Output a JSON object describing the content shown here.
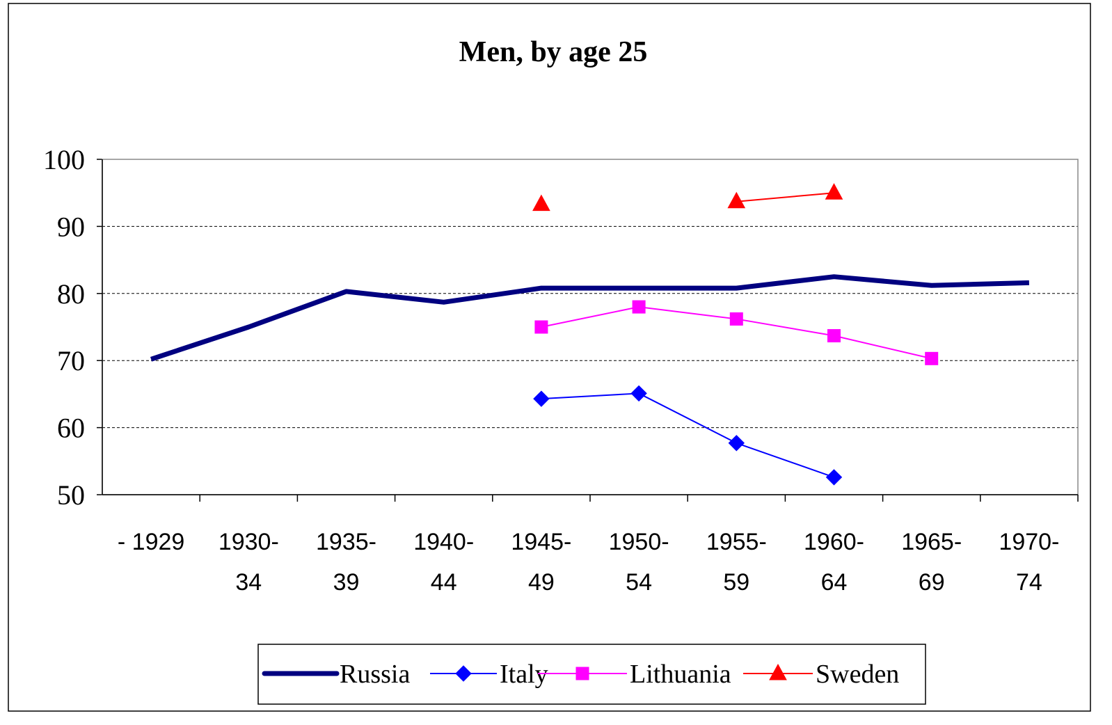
{
  "chart_data": {
    "type": "line",
    "title": "Men, by age 25",
    "categories": [
      [
        "- 1929"
      ],
      [
        "1930-",
        "34"
      ],
      [
        "1935-",
        "39"
      ],
      [
        "1940-",
        "44"
      ],
      [
        "1945-",
        "49"
      ],
      [
        "1950-",
        "54"
      ],
      [
        "1955-",
        "59"
      ],
      [
        "1960-",
        "64"
      ],
      [
        "1965-",
        "69"
      ],
      [
        "1970-",
        "74"
      ]
    ],
    "series": [
      {
        "name": "Russia",
        "color": "#000080",
        "line_width": 7,
        "marker": "none",
        "values": [
          70.2,
          75.0,
          80.3,
          78.7,
          80.8,
          80.8,
          80.8,
          82.5,
          81.2,
          81.6
        ]
      },
      {
        "name": "Italy",
        "color": "#0000ff",
        "line_width": 2,
        "marker": "diamond",
        "values": [
          null,
          null,
          null,
          null,
          64.3,
          65.1,
          57.7,
          52.6,
          null,
          null
        ]
      },
      {
        "name": "Lithuania",
        "color": "#ff00ff",
        "line_width": 2,
        "marker": "square",
        "values": [
          null,
          null,
          null,
          null,
          75.0,
          78.0,
          76.2,
          73.7,
          70.3,
          null
        ]
      },
      {
        "name": "Sweden",
        "color": "#ff0000",
        "line_width": 2,
        "marker": "triangle",
        "values": [
          null,
          null,
          null,
          null,
          93.3,
          null,
          93.7,
          95.0,
          null,
          null
        ]
      }
    ],
    "ylim": [
      50,
      100
    ],
    "yticks": [
      50,
      60,
      70,
      80,
      90,
      100
    ],
    "grid": true,
    "legend": "bottom"
  }
}
